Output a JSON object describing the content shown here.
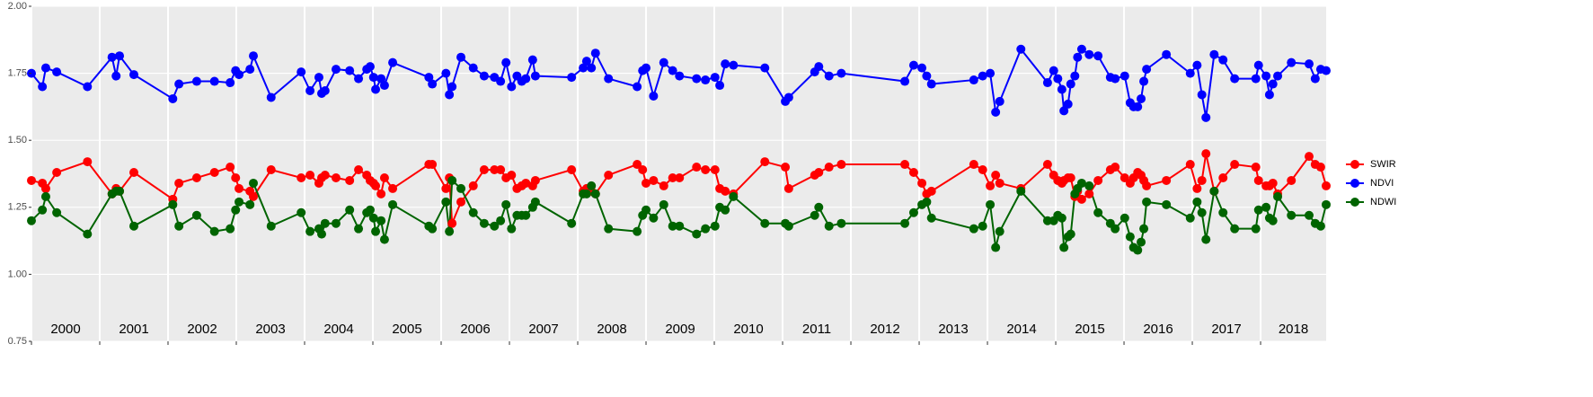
{
  "chart_data": {
    "type": "line",
    "x": [
      2000.0,
      2000.16,
      2000.21,
      2000.37,
      2000.82,
      2001.18,
      2001.24,
      2001.29,
      2001.5,
      2002.07,
      2002.16,
      2002.42,
      2002.68,
      2002.91,
      2002.99,
      2003.04,
      2003.2,
      2003.25,
      2003.51,
      2003.95,
      2004.08,
      2004.21,
      2004.25,
      2004.3,
      2004.46,
      2004.66,
      2004.79,
      2004.91,
      2004.96,
      2005.01,
      2005.04,
      2005.12,
      2005.17,
      2005.29,
      2005.82,
      2005.87,
      2006.07,
      2006.12,
      2006.16,
      2006.29,
      2006.47,
      2006.63,
      2006.78,
      2006.87,
      2006.95,
      2007.03,
      2007.11,
      2007.18,
      2007.24,
      2007.34,
      2007.38,
      2007.91,
      2008.08,
      2008.13,
      2008.2,
      2008.26,
      2008.45,
      2008.87,
      2008.95,
      2009.0,
      2009.11,
      2009.26,
      2009.39,
      2009.49,
      2009.74,
      2009.87,
      2010.01,
      2010.08,
      2010.16,
      2010.28,
      2010.74,
      2011.04,
      2011.09,
      2011.47,
      2011.53,
      2011.68,
      2011.86,
      2012.79,
      2012.92,
      2013.04,
      2013.11,
      2013.18,
      2013.8,
      2013.93,
      2014.04,
      2014.12,
      2014.18,
      2014.49,
      2014.88,
      2014.97,
      2015.03,
      2015.09,
      2015.12,
      2015.18,
      2015.22,
      2015.28,
      2015.32,
      2015.38,
      2015.49,
      2015.62,
      2015.8,
      2015.87,
      2016.01,
      2016.09,
      2016.14,
      2016.2,
      2016.25,
      2016.29,
      2016.33,
      2016.62,
      2016.97,
      2017.07,
      2017.14,
      2017.2,
      2017.32,
      2017.45,
      2017.62,
      2017.93,
      2017.97,
      2018.08,
      2018.13,
      2018.18,
      2018.25,
      2018.45,
      2018.71,
      2018.8,
      2018.88,
      2018.96
    ],
    "series": [
      {
        "name": "SWIR",
        "color": "#ff0000",
        "values": [
          1.35,
          1.34,
          1.32,
          1.38,
          1.42,
          1.3,
          1.32,
          1.31,
          1.38,
          1.28,
          1.34,
          1.36,
          1.38,
          1.4,
          1.36,
          1.32,
          1.31,
          1.29,
          1.39,
          1.36,
          1.37,
          1.34,
          1.36,
          1.37,
          1.36,
          1.35,
          1.39,
          1.37,
          1.35,
          1.34,
          1.33,
          1.3,
          1.36,
          1.32,
          1.41,
          1.41,
          1.32,
          1.36,
          1.19,
          1.27,
          1.33,
          1.39,
          1.39,
          1.39,
          1.36,
          1.37,
          1.32,
          1.33,
          1.34,
          1.33,
          1.35,
          1.39,
          1.31,
          1.32,
          1.31,
          1.3,
          1.37,
          1.41,
          1.39,
          1.34,
          1.35,
          1.33,
          1.36,
          1.36,
          1.4,
          1.39,
          1.39,
          1.32,
          1.31,
          1.3,
          1.42,
          1.4,
          1.32,
          1.37,
          1.38,
          1.4,
          1.41,
          1.41,
          1.38,
          1.34,
          1.3,
          1.31,
          1.41,
          1.39,
          1.33,
          1.37,
          1.34,
          1.32,
          1.41,
          1.37,
          1.35,
          1.34,
          1.35,
          1.36,
          1.36,
          1.29,
          1.31,
          1.28,
          1.3,
          1.35,
          1.39,
          1.4,
          1.36,
          1.34,
          1.36,
          1.38,
          1.37,
          1.35,
          1.33,
          1.35,
          1.41,
          1.32,
          1.35,
          1.45,
          1.31,
          1.36,
          1.41,
          1.4,
          1.35,
          1.33,
          1.33,
          1.34,
          1.3,
          1.35,
          1.44,
          1.41,
          1.4,
          1.33
        ]
      },
      {
        "name": "NDVI",
        "color": "#0000ff",
        "values": [
          1.75,
          1.7,
          1.77,
          1.755,
          1.7,
          1.81,
          1.74,
          1.815,
          1.745,
          1.655,
          1.71,
          1.72,
          1.72,
          1.715,
          1.76,
          1.745,
          1.765,
          1.815,
          1.66,
          1.755,
          1.685,
          1.735,
          1.675,
          1.685,
          1.765,
          1.76,
          1.73,
          1.765,
          1.775,
          1.735,
          1.69,
          1.73,
          1.705,
          1.79,
          1.735,
          1.71,
          1.75,
          1.67,
          1.7,
          1.81,
          1.77,
          1.74,
          1.735,
          1.72,
          1.79,
          1.7,
          1.74,
          1.72,
          1.73,
          1.8,
          1.74,
          1.735,
          1.77,
          1.795,
          1.77,
          1.825,
          1.73,
          1.7,
          1.76,
          1.77,
          1.665,
          1.79,
          1.76,
          1.74,
          1.73,
          1.725,
          1.735,
          1.705,
          1.785,
          1.78,
          1.77,
          1.645,
          1.66,
          1.755,
          1.775,
          1.74,
          1.75,
          1.72,
          1.78,
          1.77,
          1.74,
          1.71,
          1.725,
          1.74,
          1.75,
          1.605,
          1.645,
          1.84,
          1.715,
          1.76,
          1.73,
          1.69,
          1.61,
          1.635,
          1.71,
          1.74,
          1.81,
          1.84,
          1.82,
          1.815,
          1.735,
          1.73,
          1.74,
          1.64,
          1.625,
          1.625,
          1.655,
          1.72,
          1.765,
          1.82,
          1.75,
          1.78,
          1.67,
          1.585,
          1.82,
          1.8,
          1.73,
          1.73,
          1.78,
          1.74,
          1.67,
          1.71,
          1.74,
          1.79,
          1.785,
          1.73,
          1.765,
          1.76
        ]
      },
      {
        "name": "NDWI",
        "color": "#006400",
        "values": [
          1.2,
          1.24,
          1.29,
          1.23,
          1.15,
          1.3,
          1.31,
          1.31,
          1.18,
          1.26,
          1.18,
          1.22,
          1.16,
          1.17,
          1.24,
          1.27,
          1.26,
          1.34,
          1.18,
          1.23,
          1.16,
          1.17,
          1.15,
          1.19,
          1.19,
          1.24,
          1.17,
          1.23,
          1.24,
          1.21,
          1.16,
          1.2,
          1.13,
          1.26,
          1.18,
          1.17,
          1.27,
          1.16,
          1.35,
          1.32,
          1.23,
          1.19,
          1.18,
          1.2,
          1.26,
          1.17,
          1.22,
          1.22,
          1.22,
          1.25,
          1.27,
          1.19,
          1.3,
          1.3,
          1.33,
          1.3,
          1.17,
          1.16,
          1.22,
          1.24,
          1.21,
          1.26,
          1.18,
          1.18,
          1.15,
          1.17,
          1.18,
          1.25,
          1.24,
          1.29,
          1.19,
          1.19,
          1.18,
          1.22,
          1.25,
          1.18,
          1.19,
          1.19,
          1.23,
          1.26,
          1.27,
          1.21,
          1.17,
          1.18,
          1.26,
          1.1,
          1.16,
          1.31,
          1.2,
          1.2,
          1.22,
          1.21,
          1.1,
          1.14,
          1.15,
          1.3,
          1.32,
          1.34,
          1.33,
          1.23,
          1.19,
          1.17,
          1.21,
          1.14,
          1.1,
          1.09,
          1.12,
          1.17,
          1.27,
          1.26,
          1.21,
          1.27,
          1.23,
          1.13,
          1.31,
          1.23,
          1.17,
          1.17,
          1.24,
          1.25,
          1.21,
          1.2,
          1.29,
          1.22,
          1.22,
          1.19,
          1.18,
          1.26
        ]
      }
    ],
    "xlim": [
      2000,
      2018.96
    ],
    "xticks": [
      2000,
      2001,
      2002,
      2003,
      2004,
      2005,
      2006,
      2007,
      2008,
      2009,
      2010,
      2011,
      2012,
      2013,
      2014,
      2015,
      2016,
      2017,
      2018
    ],
    "ylim": [
      0.75,
      2
    ],
    "yticks": [
      0.75,
      {
        "value": 1,
        "label": "1.00"
      },
      1.25,
      {
        "value": 1.5,
        "label": "1.50"
      },
      1.75,
      {
        "value": 2,
        "label": "2.00"
      }
    ],
    "grid": true,
    "legend": "right"
  }
}
